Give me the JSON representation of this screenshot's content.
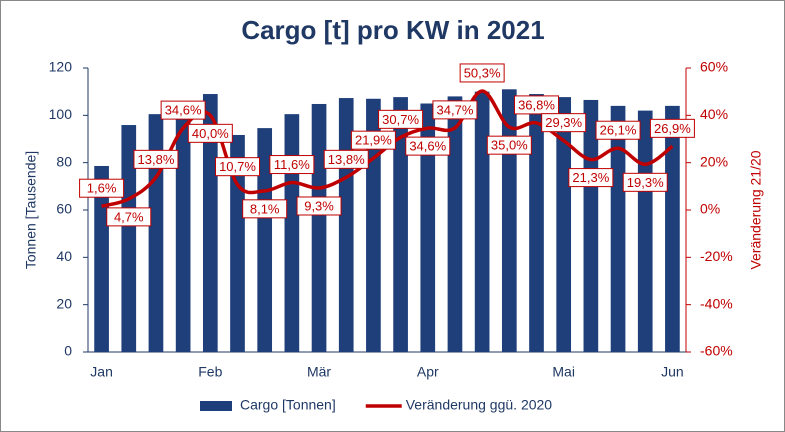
{
  "chart_data": {
    "type": "bar-line",
    "title": "Cargo [t] pro KW in 2021",
    "y_label": "Tonnen [Tausende]",
    "y2_label": "Veränderung 21/20",
    "categories": [
      "Jan",
      null,
      null,
      null,
      "Feb",
      null,
      null,
      null,
      "Mär",
      null,
      null,
      null,
      "Apr",
      null,
      null,
      null,
      null,
      "Mai",
      null,
      null,
      null,
      "Jun"
    ],
    "ylim": [
      0,
      120
    ],
    "yticks": [
      0,
      20,
      40,
      60,
      80,
      100,
      120
    ],
    "y2lim": [
      -60,
      60
    ],
    "y2ticks": [
      {
        "value": -60,
        "label": "-60%"
      },
      {
        "value": -40,
        "label": "-40%"
      },
      {
        "value": -20,
        "label": "-20%"
      },
      {
        "value": 0,
        "label": "0%"
      },
      {
        "value": 20,
        "label": "20%"
      },
      {
        "value": 40,
        "label": "40%"
      },
      {
        "value": 60,
        "label": "60%"
      }
    ],
    "series": [
      {
        "name": "Cargo [Tonnen]",
        "type": "bar",
        "color": "#1f3f7a",
        "values": [
          78.6,
          95.9,
          100.5,
          104,
          109,
          91.7,
          94.6,
          100.5,
          104.8,
          107.3,
          107,
          107.7,
          105,
          108,
          110,
          111,
          109,
          107.7,
          106.5,
          104,
          102,
          104
        ]
      },
      {
        "name": "Veränderung ggü. 2020",
        "type": "line",
        "axis": "y2",
        "color": "#c00000",
        "values": [
          1.6,
          4.7,
          13.8,
          34.6,
          40.0,
          10.7,
          8.1,
          11.6,
          9.3,
          13.8,
          21.9,
          30.7,
          34.6,
          34.7,
          50.3,
          35.0,
          36.8,
          29.3,
          21.3,
          26.1,
          19.3,
          26.9
        ],
        "value_labels": [
          "1,6%",
          "4,7%",
          "13,8%",
          "34,6%",
          "40,0%",
          "10,7%",
          "8,1%",
          "11,6%",
          "9,3%",
          "13,8%",
          "21,9%",
          "30,7%",
          "34,6%",
          "34,7%",
          "50,3%",
          "35,0%",
          "36,8%",
          "29,3%",
          "21,3%",
          "26,1%",
          "19,3%",
          "26,9%"
        ]
      }
    ]
  }
}
